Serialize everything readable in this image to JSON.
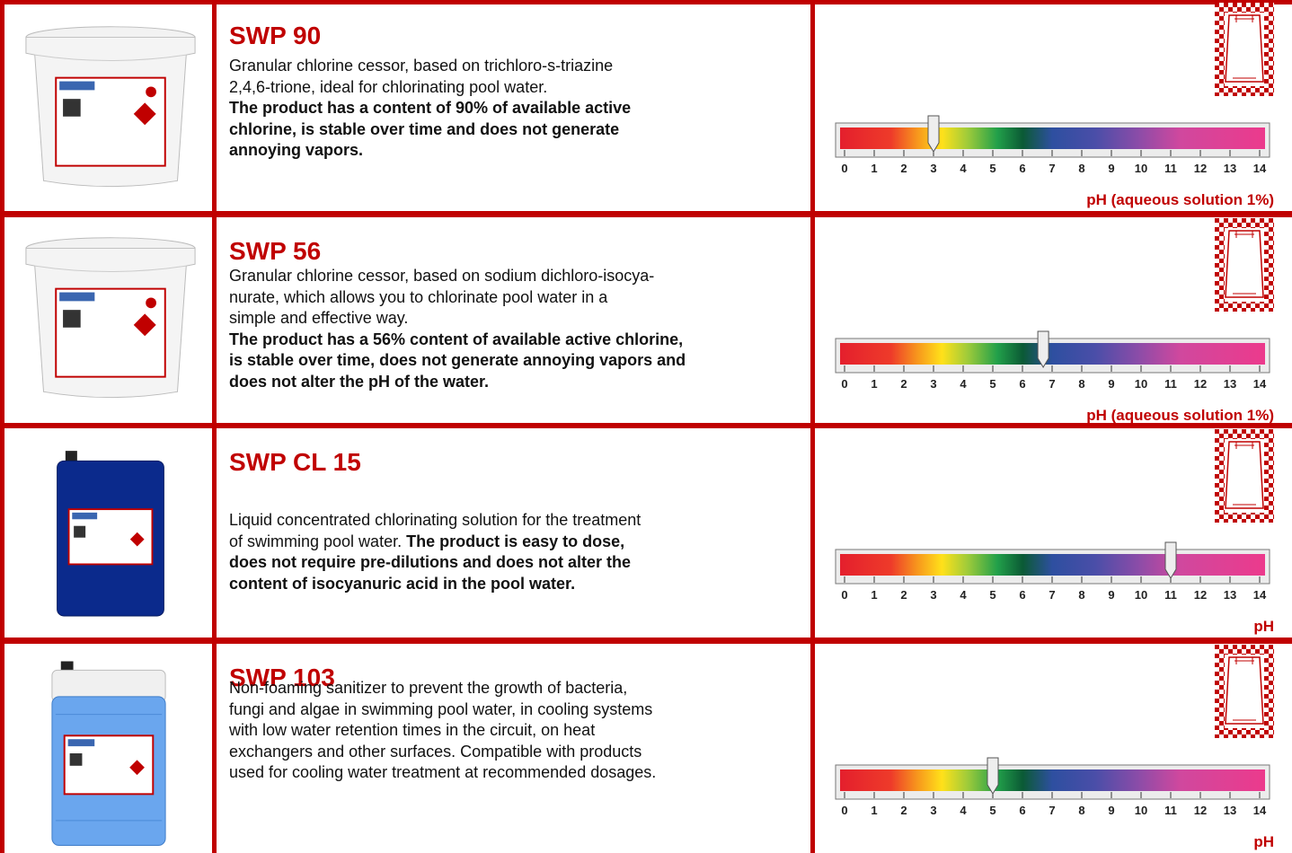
{
  "products": [
    {
      "name": "SWP 90",
      "description": [
        [
          {
            "text": "Granular chlorine cessor, based on trichloro-s-triazine",
            "bold": false
          }
        ],
        [
          {
            "text": "2,4,6-trione, ideal for chlorinating pool water.",
            "bold": false
          }
        ],
        [
          {
            "text": "The product has a content of 90% of available active",
            "bold": true
          }
        ],
        [
          {
            "text": "chlorine, is stable over time and does not generate",
            "bold": true
          }
        ],
        [
          {
            "text": "annoying vapors.",
            "bold": true
          }
        ]
      ],
      "ph": 3,
      "ph_label": "pH (aqueous solution 1%)"
    },
    {
      "name": "SWP 56",
      "description": [
        [
          {
            "text": "Granular chlorine cessor, based on sodium dichloro-isocya-",
            "bold": false
          }
        ],
        [
          {
            "text": "nurate, which allows you to chlorinate pool water in a",
            "bold": false
          }
        ],
        [
          {
            "text": "simple and effective way.",
            "bold": false
          }
        ],
        [
          {
            "text": "The product has a 56% content of available active chlorine,",
            "bold": true
          }
        ],
        [
          {
            "text": "is stable over time, does not generate annoying vapors and",
            "bold": true
          }
        ],
        [
          {
            "text": "does not alter the pH of the water.",
            "bold": true
          }
        ]
      ],
      "ph": 6.7,
      "ph_label": "pH (aqueous solution 1%)"
    },
    {
      "name": "SWP CL 15",
      "description": [
        [
          {
            "text": "Liquid concentrated chlorinating solution for the treatment",
            "bold": false
          }
        ],
        [
          {
            "text": "of swimming pool water. ",
            "bold": false
          },
          {
            "text": "The product is easy to dose,",
            "bold": true
          }
        ],
        [
          {
            "text": "does not require pre-dilutions and does not alter the",
            "bold": true
          }
        ],
        [
          {
            "text": "content of isocyanuric acid in the pool water.",
            "bold": true
          }
        ]
      ],
      "ph": 11,
      "ph_label": "pH"
    },
    {
      "name": "SWP 103",
      "description": [
        [
          {
            "text": "Non-foaming sanitizer to prevent the growth of bacteria,",
            "bold": false
          }
        ],
        [
          {
            "text": "fungi and algae in swimming pool water, in cooling systems",
            "bold": false
          }
        ],
        [
          {
            "text": "with low water retention times in the circuit, on heat",
            "bold": false
          }
        ],
        [
          {
            "text": "exchangers and other surfaces. Compatible with products",
            "bold": false
          }
        ],
        [
          {
            "text": "used for cooling water treatment at recommended dosages.",
            "bold": false
          }
        ]
      ],
      "ph": 5,
      "ph_label": "pH"
    }
  ],
  "ph_scale": [
    0,
    1,
    2,
    3,
    4,
    5,
    6,
    7,
    8,
    9,
    10,
    11,
    12,
    13,
    14
  ]
}
